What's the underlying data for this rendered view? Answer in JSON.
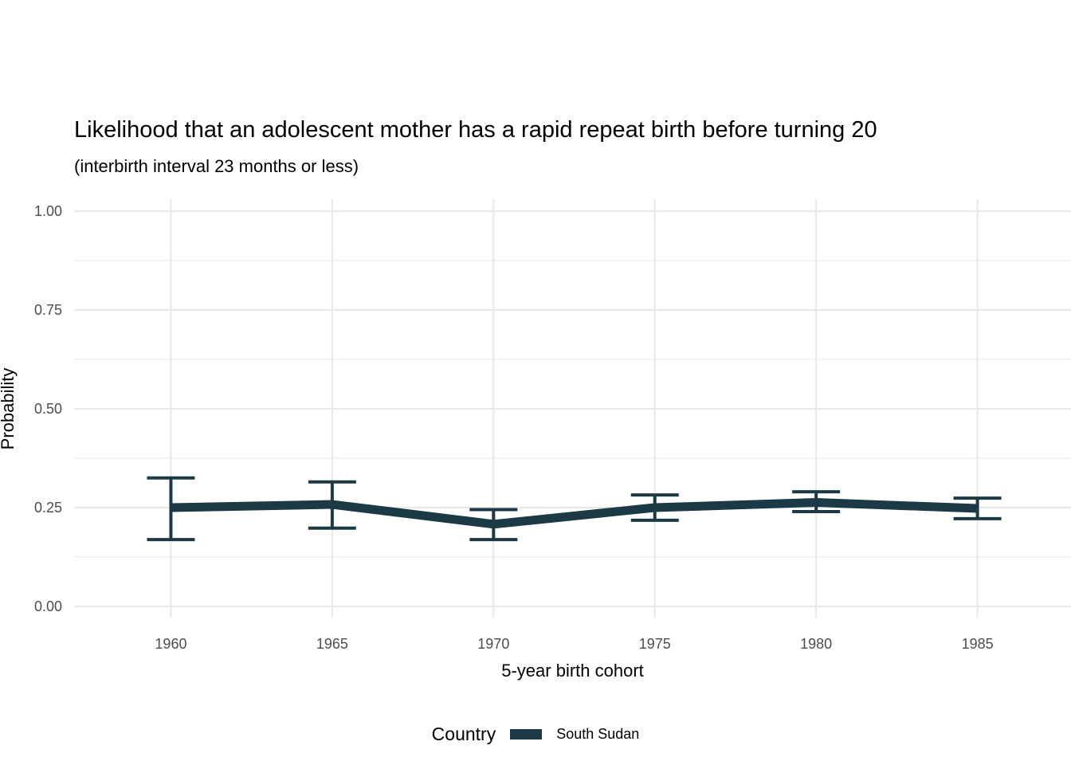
{
  "chart_data": {
    "type": "line",
    "title": "Likelihood that an adolescent mother has a rapid repeat birth before turning 20",
    "subtitle": "(interbirth interval 23 months or less)",
    "xlabel": "5-year birth cohort",
    "ylabel": "Probability",
    "x": [
      1960,
      1965,
      1970,
      1975,
      1980,
      1985
    ],
    "x_tick_labels": [
      "1960",
      "1965",
      "1970",
      "1975",
      "1980",
      "1985"
    ],
    "series": [
      {
        "name": "South Sudan",
        "estimates": [
          0.25,
          0.258,
          0.208,
          0.25,
          0.263,
          0.248
        ],
        "ci_low": [
          0.169,
          0.198,
          0.169,
          0.218,
          0.24,
          0.222
        ],
        "ci_high": [
          0.325,
          0.315,
          0.245,
          0.282,
          0.29,
          0.274
        ],
        "color": "#1c3a46"
      }
    ],
    "xlim": [
      1957,
      1987.9
    ],
    "ylim": [
      0,
      1
    ],
    "y_major_ticks": [
      0,
      0.25,
      0.5,
      0.75,
      1.0
    ],
    "y_tick_labels": [
      "0.00",
      "0.25",
      "0.50",
      "0.75",
      "1.00"
    ],
    "y_minor_ticks": [
      0.125,
      0.375,
      0.625,
      0.875
    ],
    "grid": "on",
    "error_bars": true,
    "legend": {
      "position": "bottom",
      "title": "Country",
      "entries": [
        {
          "label": "South Sudan",
          "color": "#1c3a46"
        }
      ]
    }
  },
  "colors": {
    "series": "#1c3a46",
    "grid_major": "#e8e8e8",
    "grid_minor": "#f0f0f0",
    "tick_label": "#4d4d4d",
    "axis_title": "#000000",
    "text": "#000000",
    "background": "#ffffff"
  }
}
